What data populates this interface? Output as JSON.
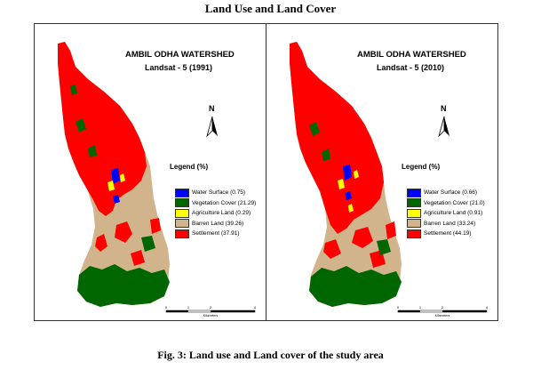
{
  "page_title": "Land Use and Land Cover",
  "figure_caption": "Fig. 3: Land use and Land cover of the study area",
  "colors": {
    "water": "#0000ff",
    "vegetation": "#006600",
    "agriculture": "#ffff00",
    "barren": "#d2b48c",
    "settlement": "#ff0000"
  },
  "maps": [
    {
      "title": "AMBIL ODHA WATERSHED",
      "subtitle": "Landsat - 5   (1991)",
      "north_label": "N",
      "legend_title": "Legend   (%)",
      "legend": [
        {
          "label": "Water Surface (0.75)",
          "color": "#0000ff"
        },
        {
          "label": "Vegetation Cover (21.29)",
          "color": "#006600"
        },
        {
          "label": "Agriculture Land (0.29)",
          "color": "#ffff00"
        },
        {
          "label": "Barren Land (39.26)",
          "color": "#d2b48c"
        },
        {
          "label": "Settlement (37.91)",
          "color": "#ff0000"
        }
      ],
      "scale_ticks": [
        "0",
        "1",
        "2",
        "4"
      ],
      "scale_unit": "Kilometers"
    },
    {
      "title": "AMBIL ODHA WATERSHED",
      "subtitle": "Landsat - 5   (2010)",
      "north_label": "N",
      "legend_title": "Legend   (%)",
      "legend": [
        {
          "label": "Water Surface (0.66)",
          "color": "#0000ff"
        },
        {
          "label": "Vegetation Cover (21.0)",
          "color": "#006600"
        },
        {
          "label": "Agriculture Land (0.91)",
          "color": "#ffff00"
        },
        {
          "label": "Barren Land (33.24)",
          "color": "#d2b48c"
        },
        {
          "label": "Settlement (44.19)",
          "color": "#ff0000"
        }
      ],
      "scale_ticks": [
        "0",
        "1",
        "2",
        "4"
      ],
      "scale_unit": "Kilometers"
    }
  ]
}
